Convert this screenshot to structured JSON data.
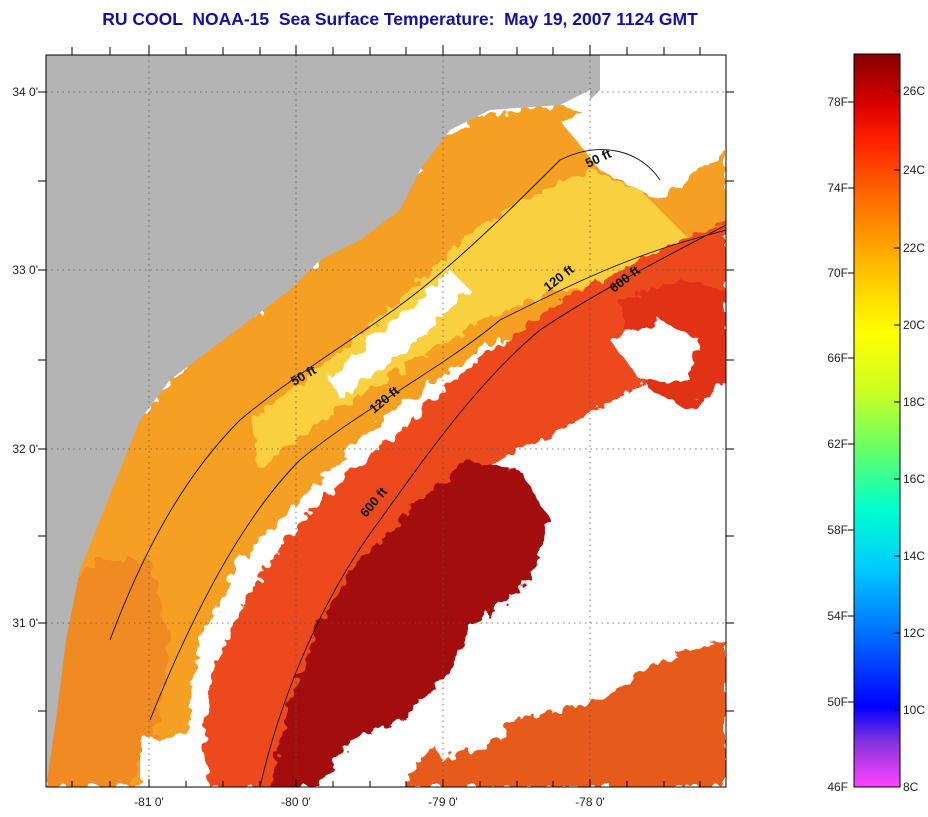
{
  "title": "RU COOL  NOAA-15  Sea Surface Temperature:  May 19, 2007 1124 GMT",
  "map": {
    "lat_ticks": [
      "34 0'",
      "33 0'",
      "32 0'",
      "31 0'"
    ],
    "lon_ticks": [
      "-81 0'",
      "-80 0'",
      "-79 0'",
      "-78 0'"
    ],
    "isobath_labels": [
      "50 ft",
      "120 ft",
      "600 ft",
      "50 ft",
      "120 ft",
      "600 ft"
    ],
    "colors": {
      "land": "#b4b4b4",
      "cloud": "#ffffff",
      "nearshore": "#f5a020",
      "shelf": "#f07018",
      "midshelf": "#e8401a",
      "gulfstream": "#a81010",
      "outer": "#e04018",
      "cool_shelf": "#f8e020"
    }
  },
  "colorbar": {
    "fahrenheit_labels": [
      "78F",
      "74F",
      "70F",
      "66F",
      "62F",
      "58F",
      "54F",
      "50F",
      "46F"
    ],
    "celsius_labels": [
      "26C",
      "24C",
      "22C",
      "20C",
      "18C",
      "16C",
      "14C",
      "12C",
      "10C",
      "8C"
    ],
    "range_c": [
      8,
      27
    ],
    "colors": [
      "#ff44ff",
      "#8833dd",
      "#0000ff",
      "#0066ff",
      "#00ccff",
      "#00ffcc",
      "#66ff66",
      "#ccff22",
      "#ffff00",
      "#ffcc00",
      "#ff9900",
      "#ff6600",
      "#ff2200",
      "#dd0000",
      "#aa0000",
      "#880000"
    ]
  }
}
